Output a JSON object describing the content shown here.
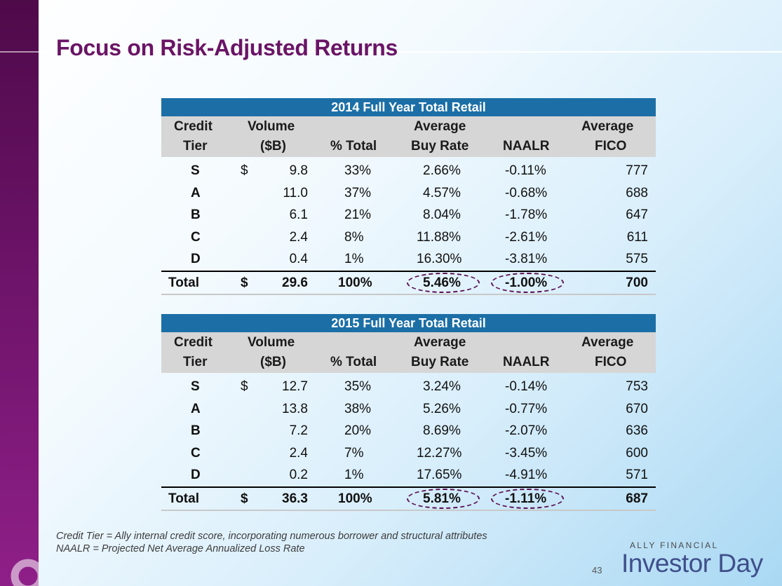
{
  "title": "Focus on Risk-Adjusted Returns",
  "headers": {
    "tier1": "Credit",
    "tier2": "Tier",
    "vol1": "Volume",
    "vol2": "($B)",
    "pct": "% Total",
    "buy1": "Average",
    "buy2": "Buy Rate",
    "naalr": "NAALR",
    "fico1": "Average",
    "fico2": "FICO"
  },
  "tables": [
    {
      "title": "2014 Full Year Total Retail",
      "rows": [
        {
          "tier": "S",
          "currency": "$",
          "volume": "9.8",
          "pct": "33%",
          "buy_rate": "2.66%",
          "naalr": "-0.11%",
          "fico": "777"
        },
        {
          "tier": "A",
          "currency": "",
          "volume": "11.0",
          "pct": "37%",
          "buy_rate": "4.57%",
          "naalr": "-0.68%",
          "fico": "688"
        },
        {
          "tier": "B",
          "currency": "",
          "volume": "6.1",
          "pct": "21%",
          "buy_rate": "8.04%",
          "naalr": "-1.78%",
          "fico": "647"
        },
        {
          "tier": "C",
          "currency": "",
          "volume": "2.4",
          "pct": "8%",
          "buy_rate": "11.88%",
          "naalr": "-2.61%",
          "fico": "611"
        },
        {
          "tier": "D",
          "currency": "",
          "volume": "0.4",
          "pct": "1%",
          "buy_rate": "16.30%",
          "naalr": "-3.81%",
          "fico": "575"
        }
      ],
      "total": {
        "label": "Total",
        "currency": "$",
        "volume": "29.6",
        "pct": "100%",
        "buy_rate": "5.46%",
        "naalr": "-1.00%",
        "fico": "700"
      }
    },
    {
      "title": "2015 Full Year Total Retail",
      "rows": [
        {
          "tier": "S",
          "currency": "$",
          "volume": "12.7",
          "pct": "35%",
          "buy_rate": "3.24%",
          "naalr": "-0.14%",
          "fico": "753"
        },
        {
          "tier": "A",
          "currency": "",
          "volume": "13.8",
          "pct": "38%",
          "buy_rate": "5.26%",
          "naalr": "-0.77%",
          "fico": "670"
        },
        {
          "tier": "B",
          "currency": "",
          "volume": "7.2",
          "pct": "20%",
          "buy_rate": "8.69%",
          "naalr": "-2.07%",
          "fico": "636"
        },
        {
          "tier": "C",
          "currency": "",
          "volume": "2.4",
          "pct": "7%",
          "buy_rate": "12.27%",
          "naalr": "-3.45%",
          "fico": "600"
        },
        {
          "tier": "D",
          "currency": "",
          "volume": "0.2",
          "pct": "1%",
          "buy_rate": "17.65%",
          "naalr": "-4.91%",
          "fico": "571"
        }
      ],
      "total": {
        "label": "Total",
        "currency": "$",
        "volume": "36.3",
        "pct": "100%",
        "buy_rate": "5.81%",
        "naalr": "-1.11%",
        "fico": "687"
      }
    }
  ],
  "footnotes": [
    "Credit Tier = Ally internal credit score, incorporating numerous borrower and structural attributes",
    "NAALR = Projected Net Average Annualized Loss Rate"
  ],
  "brand": {
    "small": "ALLY FINANCIAL",
    "big": "Investor Day"
  },
  "page_number": "43",
  "colors": {
    "title": "#6a1466",
    "banner": "#1c6fa6",
    "header_bg": "#d6d6d6",
    "oval": "#5b1253",
    "sidebar": "#6c1368"
  }
}
